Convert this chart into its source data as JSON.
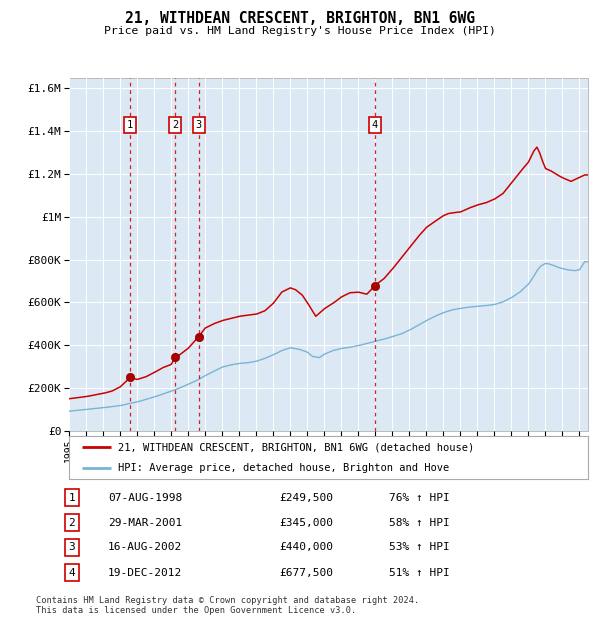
{
  "title": "21, WITHDEAN CRESCENT, BRIGHTON, BN1 6WG",
  "subtitle": "Price paid vs. HM Land Registry's House Price Index (HPI)",
  "background_color": "#ffffff",
  "plot_bg_color": "#dce9f5",
  "red_line_label": "21, WITHDEAN CRESCENT, BRIGHTON, BN1 6WG (detached house)",
  "blue_line_label": "HPI: Average price, detached house, Brighton and Hove",
  "footer": "Contains HM Land Registry data © Crown copyright and database right 2024.\nThis data is licensed under the Open Government Licence v3.0.",
  "transactions": [
    {
      "num": 1,
      "date": "07-AUG-1998",
      "year": 1998.6,
      "price": 249500,
      "price_str": "£249,500",
      "pct": "76% ↑ HPI"
    },
    {
      "num": 2,
      "date": "29-MAR-2001",
      "year": 2001.25,
      "price": 345000,
      "price_str": "£345,000",
      "pct": "58% ↑ HPI"
    },
    {
      "num": 3,
      "date": "16-AUG-2002",
      "year": 2002.62,
      "price": 440000,
      "price_str": "£440,000",
      "pct": "53% ↑ HPI"
    },
    {
      "num": 4,
      "date": "19-DEC-2012",
      "year": 2012.97,
      "price": 677500,
      "price_str": "£677,500",
      "pct": "51% ↑ HPI"
    }
  ],
  "ylim": [
    0,
    1650000
  ],
  "yticks": [
    0,
    200000,
    400000,
    600000,
    800000,
    1000000,
    1200000,
    1400000,
    1600000
  ],
  "xlim_start": 1995.0,
  "xlim_end": 2025.5,
  "red_anchors": [
    [
      1995.0,
      150000
    ],
    [
      1996.0,
      160000
    ],
    [
      1997.0,
      175000
    ],
    [
      1997.5,
      185000
    ],
    [
      1998.0,
      205000
    ],
    [
      1998.6,
      249500
    ],
    [
      1999.0,
      240000
    ],
    [
      1999.5,
      252000
    ],
    [
      2000.0,
      272000
    ],
    [
      2000.5,
      295000
    ],
    [
      2001.0,
      310000
    ],
    [
      2001.25,
      345000
    ],
    [
      2001.5,
      355000
    ],
    [
      2002.0,
      385000
    ],
    [
      2002.62,
      440000
    ],
    [
      2003.0,
      480000
    ],
    [
      2003.5,
      500000
    ],
    [
      2004.0,
      515000
    ],
    [
      2004.5,
      525000
    ],
    [
      2005.0,
      535000
    ],
    [
      2005.5,
      540000
    ],
    [
      2006.0,
      545000
    ],
    [
      2006.5,
      560000
    ],
    [
      2007.0,
      595000
    ],
    [
      2007.5,
      648000
    ],
    [
      2008.0,
      668000
    ],
    [
      2008.3,
      660000
    ],
    [
      2008.7,
      635000
    ],
    [
      2009.0,
      600000
    ],
    [
      2009.5,
      535000
    ],
    [
      2010.0,
      570000
    ],
    [
      2010.5,
      595000
    ],
    [
      2011.0,
      625000
    ],
    [
      2011.5,
      645000
    ],
    [
      2012.0,
      648000
    ],
    [
      2012.5,
      638000
    ],
    [
      2012.97,
      677500
    ],
    [
      2013.0,
      680000
    ],
    [
      2013.5,
      710000
    ],
    [
      2014.0,
      755000
    ],
    [
      2014.5,
      805000
    ],
    [
      2015.0,
      855000
    ],
    [
      2015.5,
      905000
    ],
    [
      2016.0,
      950000
    ],
    [
      2016.5,
      978000
    ],
    [
      2017.0,
      1005000
    ],
    [
      2017.3,
      1015000
    ],
    [
      2017.7,
      1020000
    ],
    [
      2018.0,
      1022000
    ],
    [
      2018.5,
      1040000
    ],
    [
      2019.0,
      1055000
    ],
    [
      2019.5,
      1065000
    ],
    [
      2020.0,
      1082000
    ],
    [
      2020.5,
      1108000
    ],
    [
      2021.0,
      1158000
    ],
    [
      2021.5,
      1208000
    ],
    [
      2022.0,
      1255000
    ],
    [
      2022.3,
      1305000
    ],
    [
      2022.5,
      1325000
    ],
    [
      2022.65,
      1300000
    ],
    [
      2022.8,
      1265000
    ],
    [
      2023.0,
      1225000
    ],
    [
      2023.3,
      1215000
    ],
    [
      2023.7,
      1195000
    ],
    [
      2024.0,
      1182000
    ],
    [
      2024.5,
      1165000
    ],
    [
      2025.3,
      1195000
    ]
  ],
  "blue_anchors": [
    [
      1995.0,
      92000
    ],
    [
      1996.0,
      100000
    ],
    [
      1997.0,
      108000
    ],
    [
      1998.0,
      118000
    ],
    [
      1999.0,
      135000
    ],
    [
      2000.0,
      158000
    ],
    [
      2001.0,
      185000
    ],
    [
      2001.5,
      200000
    ],
    [
      2002.0,
      218000
    ],
    [
      2002.5,
      235000
    ],
    [
      2003.0,
      258000
    ],
    [
      2003.5,
      278000
    ],
    [
      2004.0,
      298000
    ],
    [
      2004.5,
      308000
    ],
    [
      2005.0,
      315000
    ],
    [
      2005.5,
      318000
    ],
    [
      2006.0,
      325000
    ],
    [
      2006.5,
      338000
    ],
    [
      2007.0,
      355000
    ],
    [
      2007.5,
      375000
    ],
    [
      2008.0,
      388000
    ],
    [
      2008.5,
      382000
    ],
    [
      2009.0,
      368000
    ],
    [
      2009.3,
      348000
    ],
    [
      2009.7,
      342000
    ],
    [
      2010.0,
      358000
    ],
    [
      2010.5,
      375000
    ],
    [
      2011.0,
      385000
    ],
    [
      2011.5,
      390000
    ],
    [
      2012.0,
      398000
    ],
    [
      2012.5,
      408000
    ],
    [
      2013.0,
      418000
    ],
    [
      2013.5,
      428000
    ],
    [
      2014.0,
      440000
    ],
    [
      2014.5,
      452000
    ],
    [
      2015.0,
      470000
    ],
    [
      2015.5,
      492000
    ],
    [
      2016.0,
      515000
    ],
    [
      2016.5,
      535000
    ],
    [
      2017.0,
      552000
    ],
    [
      2017.5,
      565000
    ],
    [
      2018.0,
      572000
    ],
    [
      2018.5,
      578000
    ],
    [
      2019.0,
      582000
    ],
    [
      2019.5,
      585000
    ],
    [
      2020.0,
      590000
    ],
    [
      2020.5,
      602000
    ],
    [
      2021.0,
      622000
    ],
    [
      2021.5,
      648000
    ],
    [
      2022.0,
      685000
    ],
    [
      2022.3,
      720000
    ],
    [
      2022.5,
      748000
    ],
    [
      2022.7,
      768000
    ],
    [
      2022.9,
      778000
    ],
    [
      2023.0,
      782000
    ],
    [
      2023.2,
      780000
    ],
    [
      2023.5,
      772000
    ],
    [
      2023.8,
      762000
    ],
    [
      2024.0,
      758000
    ],
    [
      2024.3,
      752000
    ],
    [
      2024.7,
      748000
    ],
    [
      2025.0,
      752000
    ],
    [
      2025.3,
      790000
    ]
  ]
}
